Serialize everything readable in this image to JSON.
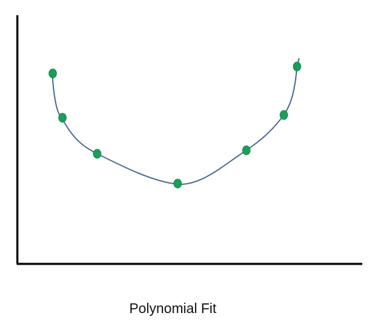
{
  "caption": "Polynomial Fit"
}
